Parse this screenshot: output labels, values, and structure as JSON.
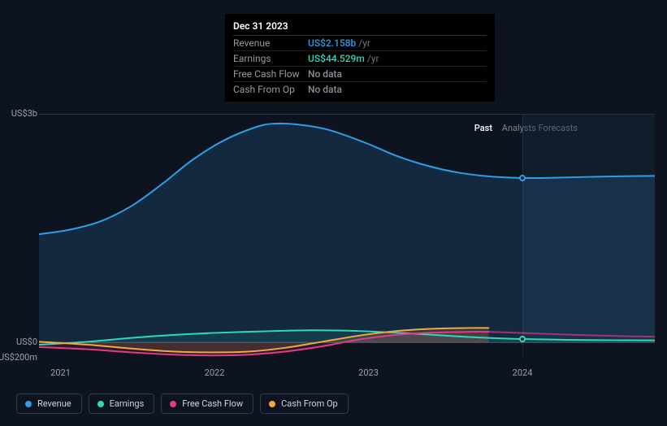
{
  "tooltip": {
    "date": "Dec 31 2023",
    "rows": [
      {
        "label": "Revenue",
        "value": "US$2.158b",
        "suffix": "/yr",
        "color": "#2f9ee6"
      },
      {
        "label": "Earnings",
        "value": "US$44.529m",
        "suffix": "/yr",
        "color": "#2fd9b6"
      },
      {
        "label": "Free Cash Flow",
        "value": "No data",
        "suffix": "",
        "color": "#8a8f99"
      },
      {
        "label": "Cash From Op",
        "value": "No data",
        "suffix": "",
        "color": "#8a8f99"
      }
    ]
  },
  "chart": {
    "background": "#0d1420",
    "grid_color": "#2a3545",
    "ylim": [
      -200,
      3000
    ],
    "y_ticks": [
      {
        "v": 3000,
        "label": "US$3b"
      },
      {
        "v": 0,
        "label": "US$0"
      },
      {
        "v": -200,
        "label": "-US$200m"
      }
    ],
    "x_categories": [
      "2021",
      "2022",
      "2023",
      "2024"
    ],
    "x_positions": [
      0.035,
      0.285,
      0.535,
      0.785
    ],
    "past_boundary": 0.785,
    "section_labels": {
      "past": "Past",
      "forecast": "Analysts Forecasts"
    },
    "hover_x": 0.785,
    "series": [
      {
        "name": "Revenue",
        "color": "#2f9ee6",
        "width": 2,
        "fill": "rgba(47,158,230,0.16)",
        "points": [
          [
            0.0,
            1420
          ],
          [
            0.05,
            1480
          ],
          [
            0.1,
            1590
          ],
          [
            0.15,
            1790
          ],
          [
            0.2,
            2080
          ],
          [
            0.25,
            2400
          ],
          [
            0.3,
            2650
          ],
          [
            0.35,
            2820
          ],
          [
            0.38,
            2870
          ],
          [
            0.42,
            2860
          ],
          [
            0.47,
            2790
          ],
          [
            0.53,
            2620
          ],
          [
            0.58,
            2450
          ],
          [
            0.63,
            2320
          ],
          [
            0.68,
            2230
          ],
          [
            0.73,
            2180
          ],
          [
            0.785,
            2158
          ],
          [
            0.83,
            2160
          ],
          [
            0.88,
            2170
          ],
          [
            0.94,
            2180
          ],
          [
            1.0,
            2185
          ]
        ]
      },
      {
        "name": "Earnings",
        "color": "#2fd9b6",
        "width": 2,
        "fill": "rgba(47,217,182,0.10)",
        "points": [
          [
            0.0,
            -30
          ],
          [
            0.08,
            10
          ],
          [
            0.15,
            60
          ],
          [
            0.22,
            100
          ],
          [
            0.3,
            130
          ],
          [
            0.38,
            150
          ],
          [
            0.45,
            160
          ],
          [
            0.52,
            150
          ],
          [
            0.6,
            120
          ],
          [
            0.68,
            80
          ],
          [
            0.73,
            60
          ],
          [
            0.785,
            45
          ],
          [
            0.86,
            35
          ],
          [
            0.93,
            30
          ],
          [
            1.0,
            28
          ]
        ]
      },
      {
        "name": "Free Cash Flow",
        "color": "#e63988",
        "width": 2,
        "fill": "rgba(230,57,136,0.14)",
        "end_x": 0.73,
        "forecast_after": 0.73,
        "points": [
          [
            0.0,
            -60
          ],
          [
            0.08,
            -90
          ],
          [
            0.15,
            -130
          ],
          [
            0.22,
            -160
          ],
          [
            0.28,
            -170
          ],
          [
            0.34,
            -160
          ],
          [
            0.4,
            -120
          ],
          [
            0.46,
            -50
          ],
          [
            0.52,
            40
          ],
          [
            0.58,
            100
          ],
          [
            0.64,
            130
          ],
          [
            0.7,
            140
          ],
          [
            0.73,
            140
          ],
          [
            0.8,
            120
          ],
          [
            0.87,
            100
          ],
          [
            0.94,
            85
          ],
          [
            1.0,
            75
          ]
        ]
      },
      {
        "name": "Cash From Op",
        "color": "#f2a93c",
        "width": 2,
        "fill": "rgba(242,169,60,0.14)",
        "end_x": 0.73,
        "points": [
          [
            0.0,
            10
          ],
          [
            0.08,
            -30
          ],
          [
            0.15,
            -80
          ],
          [
            0.22,
            -120
          ],
          [
            0.28,
            -130
          ],
          [
            0.34,
            -120
          ],
          [
            0.4,
            -70
          ],
          [
            0.46,
            10
          ],
          [
            0.52,
            90
          ],
          [
            0.58,
            150
          ],
          [
            0.64,
            180
          ],
          [
            0.7,
            190
          ],
          [
            0.73,
            190
          ]
        ]
      }
    ],
    "markers": [
      {
        "series": "Revenue",
        "x": 0.785,
        "y": 2158,
        "stroke": "#2f9ee6"
      },
      {
        "series": "Earnings",
        "x": 0.785,
        "y": 45,
        "stroke": "#2fd9b6"
      }
    ],
    "legend": [
      {
        "label": "Revenue",
        "color": "#2f9ee6"
      },
      {
        "label": "Earnings",
        "color": "#2fd9b6"
      },
      {
        "label": "Free Cash Flow",
        "color": "#e63988"
      },
      {
        "label": "Cash From Op",
        "color": "#f2a93c"
      }
    ]
  }
}
